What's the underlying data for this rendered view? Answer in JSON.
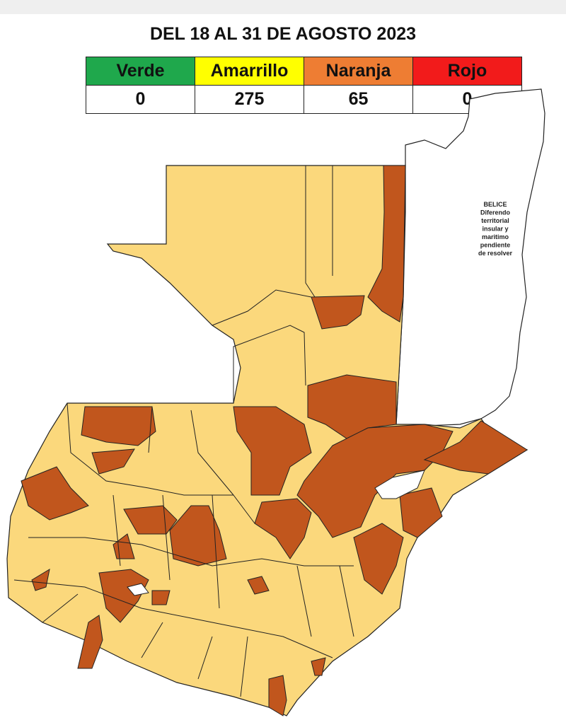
{
  "title": "DEL 18 AL 31 DE AGOSTO 2023",
  "legend": [
    {
      "label": "Verde",
      "count": 0
    },
    {
      "label": "Amarrillo",
      "count": 275
    },
    {
      "label": "Naranja",
      "count": 65
    },
    {
      "label": "Rojo",
      "count": 0
    }
  ],
  "belize_note": [
    "BELICE",
    "Diferendo",
    "territorial",
    "insular y",
    "maritimo",
    "pendiente",
    "de resolver"
  ]
}
